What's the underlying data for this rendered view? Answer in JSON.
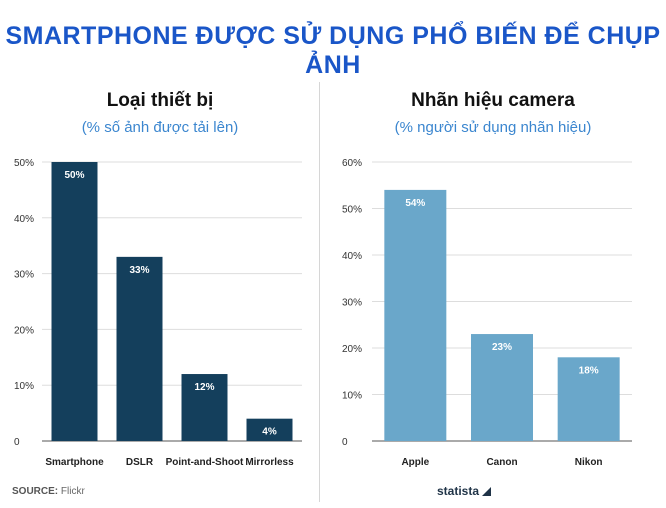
{
  "header": {
    "title": "SMARTPHONE ĐƯỢC SỬ DỤNG PHỔ BIẾN ĐỂ CHỤP ẢNH"
  },
  "left_panel": {
    "title": "Loại thiết bị",
    "subtitle": "(% số ảnh được tải lên)"
  },
  "right_panel": {
    "title": "Nhãn hiệu camera",
    "subtitle": "(% người sử dụng nhãn hiệu)"
  },
  "footer": {
    "source_label": "SOURCE:",
    "source_value": "Flickr",
    "brand": "statista"
  },
  "colors": {
    "title": "#1a56c8",
    "subtitle": "#3b86cf",
    "left_bars": "#143f5c",
    "right_bars": "#6aa7ca"
  },
  "chart_data": [
    {
      "type": "bar",
      "title": "Loại thiết bị",
      "subtitle": "(% số ảnh được tải lên)",
      "categories": [
        "Smartphone",
        "DSLR",
        "Point-and-Shoot",
        "Mirrorless"
      ],
      "values": [
        50,
        33,
        12,
        4
      ],
      "value_labels": [
        "50%",
        "33%",
        "12%",
        "4%"
      ],
      "y_ticks": [
        "0",
        "10%",
        "20%",
        "30%",
        "40%",
        "50%"
      ],
      "ylim": [
        0,
        50
      ],
      "grid": true,
      "bar_color": "#143f5c"
    },
    {
      "type": "bar",
      "title": "Nhãn hiệu camera",
      "subtitle": "(% người sử dụng nhãn hiệu)",
      "categories": [
        "Apple",
        "Canon",
        "Nikon"
      ],
      "values": [
        54,
        23,
        18
      ],
      "value_labels": [
        "54%",
        "23%",
        "18%"
      ],
      "y_ticks": [
        "0",
        "10%",
        "20%",
        "30%",
        "40%",
        "50%",
        "60%"
      ],
      "ylim": [
        0,
        60
      ],
      "grid": true,
      "bar_color": "#6aa7ca"
    }
  ]
}
